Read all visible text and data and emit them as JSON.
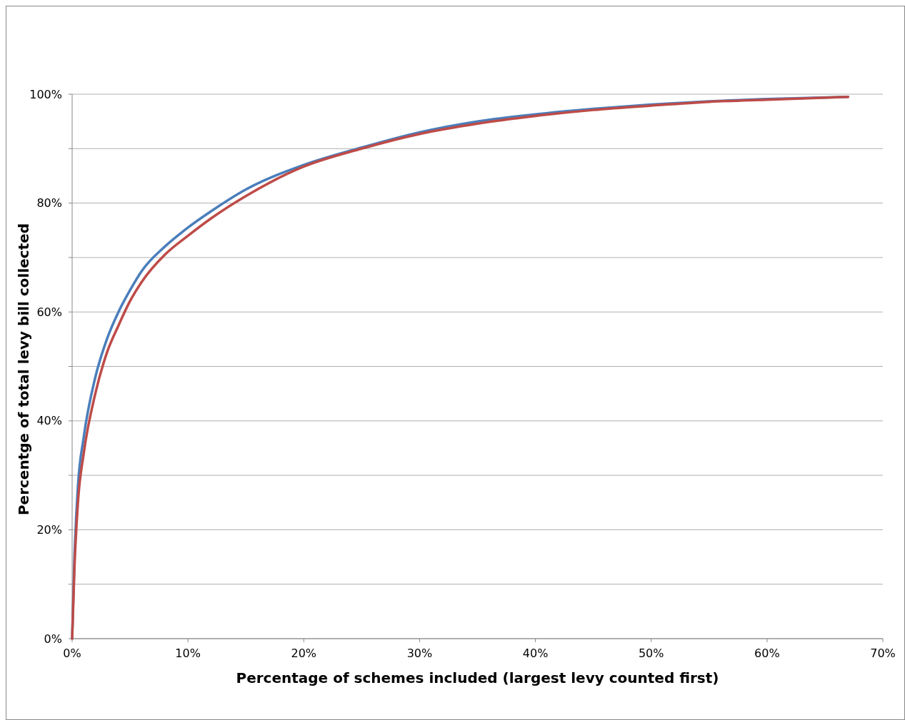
{
  "chart_data": {
    "type": "line",
    "xlabel": "Percentage of schemes included (largest levy counted first)",
    "ylabel": "Percentge of total levy bill collected",
    "xlim": [
      0,
      70
    ],
    "ylim": [
      0,
      100
    ],
    "xticks": [
      {
        "value": 0,
        "label": "0%"
      },
      {
        "value": 10,
        "label": "10%"
      },
      {
        "value": 20,
        "label": "20%"
      },
      {
        "value": 30,
        "label": "30%"
      },
      {
        "value": 40,
        "label": "40%"
      },
      {
        "value": 50,
        "label": "50%"
      },
      {
        "value": 60,
        "label": "60%"
      },
      {
        "value": 70,
        "label": "70%"
      }
    ],
    "yticks": [
      {
        "value": 0,
        "label": "0%"
      },
      {
        "value": 10,
        "label": null
      },
      {
        "value": 20,
        "label": "20%"
      },
      {
        "value": 30,
        "label": null
      },
      {
        "value": 40,
        "label": "40%"
      },
      {
        "value": 50,
        "label": null
      },
      {
        "value": 60,
        "label": "60%"
      },
      {
        "value": 70,
        "label": null
      },
      {
        "value": 80,
        "label": "80%"
      },
      {
        "value": 90,
        "label": null
      },
      {
        "value": 100,
        "label": "100%"
      }
    ],
    "grid": "y",
    "marker": "none",
    "line_style": "solid",
    "x": [
      0,
      0.2,
      0.5,
      1,
      2,
      3,
      4,
      5,
      6,
      8,
      10,
      12,
      15,
      20,
      25,
      30,
      35,
      40,
      45,
      50,
      55,
      60,
      67
    ],
    "series": [
      {
        "color": "#4a7ebb",
        "values": [
          0,
          15,
          28,
          37,
          48,
          55,
          60,
          64,
          67.5,
          72,
          75.5,
          78.5,
          82.5,
          87,
          90.2,
          93,
          95,
          96.3,
          97.3,
          98.1,
          98.7,
          99.1,
          99.5
        ]
      },
      {
        "color": "#be4b48",
        "values": [
          0,
          13,
          25,
          34,
          45,
          52.5,
          57.5,
          62,
          65.5,
          70.5,
          74,
          77.2,
          81.3,
          86.7,
          90,
          92.7,
          94.6,
          96,
          97.1,
          97.9,
          98.6,
          99,
          99.5
        ]
      }
    ]
  }
}
